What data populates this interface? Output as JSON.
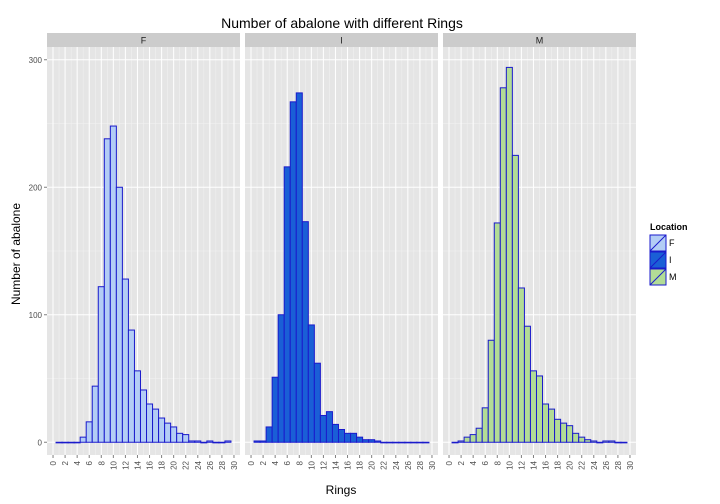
{
  "chart_data": {
    "type": "bar",
    "title": "Number of abalone with different Rings",
    "xlabel": "Rings",
    "ylabel": "Number of abalone",
    "x_ticks": [
      "0",
      "2",
      "4",
      "6",
      "8",
      "10",
      "12",
      "14",
      "16",
      "18",
      "20",
      "22",
      "24",
      "26",
      "28",
      "30"
    ],
    "y_ticks": [
      "0",
      "100",
      "200",
      "300"
    ],
    "xlim": [
      -1,
      31
    ],
    "ylim": [
      -10,
      310
    ],
    "bin_start": 1,
    "bin_width": 1,
    "grid": true,
    "legend_title": "Location",
    "legend_position": "right",
    "panels": [
      {
        "name": "F",
        "fill": "#b3cdf5",
        "values": [
          0,
          0,
          0,
          0,
          4,
          16,
          44,
          122,
          238,
          248,
          200,
          128,
          88,
          56,
          41,
          30,
          26,
          19,
          15,
          12,
          7,
          6,
          1,
          1,
          0,
          1,
          0,
          0,
          1
        ]
      },
      {
        "name": "I",
        "fill": "#1a5fd6",
        "values": [
          1,
          1,
          12,
          51,
          100,
          216,
          267,
          274,
          173,
          92,
          62,
          21,
          24,
          14,
          10,
          7,
          7,
          4,
          2,
          2,
          1,
          0,
          0,
          0,
          0,
          0,
          0,
          0,
          0
        ]
      },
      {
        "name": "M",
        "fill": "#b2dc96",
        "values": [
          0,
          1,
          4,
          6,
          11,
          27,
          80,
          172,
          278,
          294,
          225,
          121,
          91,
          56,
          52,
          30,
          26,
          18,
          15,
          13,
          7,
          4,
          2,
          1,
          0,
          1,
          1,
          0,
          0
        ]
      }
    ],
    "outline_color": "#1a1acc",
    "panel_bg": "#e5e5e5",
    "strip_bg": "#cccccc"
  }
}
